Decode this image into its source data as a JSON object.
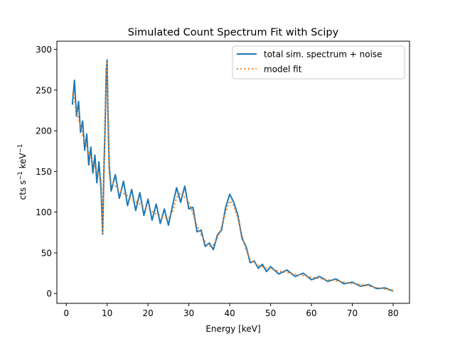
{
  "chart_data": {
    "type": "line",
    "title": "Simulated Count Spectrum Fit with Scipy",
    "xlabel": "Energy [keV]",
    "ylabel": {
      "base": "cts s",
      "exp1": "−1",
      "mid": " keV",
      "exp2": "−1"
    },
    "xlim": [
      -2.3,
      84
    ],
    "ylim": [
      -12,
      310
    ],
    "xticks": [
      0,
      10,
      20,
      30,
      40,
      50,
      60,
      70,
      80
    ],
    "yticks": [
      0,
      50,
      100,
      150,
      200,
      250,
      300
    ],
    "grid": false,
    "legend_position": "top-right",
    "x": [
      1.5,
      2,
      2.5,
      3,
      3.5,
      4,
      4.5,
      5,
      5.5,
      6,
      6.5,
      7,
      7.5,
      8,
      8.5,
      8.9,
      9.2,
      9.5,
      9.8,
      10,
      10.2,
      10.5,
      11,
      12,
      13,
      14,
      15,
      16,
      17,
      18,
      19,
      20,
      21,
      22,
      23,
      24,
      25,
      26,
      27,
      28,
      29,
      30,
      31,
      32,
      33,
      34,
      35,
      36,
      37,
      38,
      39,
      40,
      41,
      42,
      43,
      44,
      45,
      46,
      47,
      48,
      49,
      50,
      52,
      54,
      56,
      58,
      60,
      62,
      64,
      66,
      68,
      70,
      72,
      74,
      76,
      78,
      80
    ],
    "series": [
      {
        "name": "total sim. spectrum + noise",
        "color": "#1f77b4",
        "style": "solid",
        "values": [
          232,
          262,
          218,
          236,
          198,
          212,
          176,
          196,
          158,
          180,
          148,
          170,
          136,
          162,
          128,
          73,
          150,
          205,
          275,
          287,
          225,
          158,
          126,
          146,
          117,
          138,
          108,
          128,
          102,
          124,
          96,
          116,
          90,
          110,
          86,
          104,
          84,
          108,
          130,
          112,
          132,
          104,
          106,
          76,
          78,
          58,
          62,
          54,
          72,
          78,
          106,
          122,
          112,
          96,
          68,
          58,
          38,
          40,
          31,
          36,
          27,
          33,
          24,
          29,
          21,
          25,
          17,
          21,
          15,
          18,
          12,
          14,
          9,
          11,
          6,
          7,
          3
        ]
      },
      {
        "name": "model fit",
        "color": "#ff7f0e",
        "style": "dotted",
        "values": [
          245,
          238,
          225,
          215,
          205,
          195,
          188,
          180,
          172,
          168,
          160,
          155,
          150,
          146,
          140,
          75,
          140,
          200,
          270,
          285,
          220,
          145,
          138,
          132,
          127,
          123,
          120,
          116,
          113,
          110,
          107,
          104,
          101,
          98,
          96,
          93,
          92,
          100,
          118,
          124,
          118,
          112,
          98,
          84,
          72,
          64,
          58,
          60,
          68,
          82,
          100,
          114,
          108,
          92,
          72,
          54,
          42,
          37,
          35,
          33,
          31,
          30,
          28,
          26,
          24,
          22,
          20,
          18.5,
          17,
          15.5,
          14,
          12.5,
          11,
          9,
          7.5,
          5.5,
          4
        ]
      }
    ]
  }
}
